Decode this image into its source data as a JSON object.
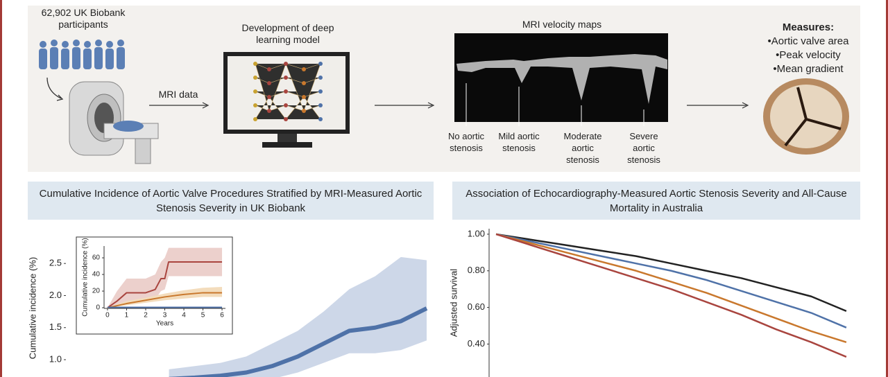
{
  "header": {
    "participants": "62,902 UK Biobank participants",
    "mri_data": "MRI data",
    "model": "Development of deep learning model",
    "maps_title": "MRI velocity maps",
    "maps_labels": [
      "No aortic stenosis",
      "Mild aortic stenosis",
      "Moderate aortic stenosis",
      "Severe aortic stenosis"
    ],
    "measures_title": "Measures:",
    "measures": [
      "•Aortic valve area",
      "•Peak velocity",
      "•Mean gradient"
    ]
  },
  "chart_data": [
    {
      "type": "line",
      "title": "Cumulative Incidence of Aortic Valve Procedures Stratified by MRI-Measured Aortic Stenosis Severity in UK Biobank",
      "y_label": "Cumulative incidence (%)",
      "xlim": [
        -4,
        10
      ],
      "ylim": [
        0.73,
        2.88
      ],
      "yticks": [
        {
          "value": 1,
          "label": "1.0"
        },
        1.5,
        {
          "value": 2,
          "label": "2.0"
        },
        2.5
      ],
      "series": [
        {
          "color": "#4f72a8",
          "band_color": "#cdd7e8",
          "x": [
            0,
            1,
            2,
            3,
            4,
            5,
            6,
            7,
            8,
            9,
            10
          ],
          "values": [
            0.7,
            0.72,
            0.75,
            0.8,
            0.9,
            1.05,
            1.25,
            1.45,
            1.5,
            1.6,
            1.8
          ],
          "upper": [
            0.85,
            0.9,
            0.95,
            1.05,
            1.25,
            1.45,
            1.75,
            2.1,
            2.3,
            2.6,
            2.55
          ],
          "lower": [
            0.6,
            0.6,
            0.62,
            0.65,
            0.7,
            0.8,
            0.95,
            1.1,
            1.1,
            1.15,
            1.3
          ]
        }
      ]
    },
    {
      "type": "line",
      "x_label": "Years",
      "y_label": "Cumulative incidence (%)",
      "xlim": [
        -0.18,
        6.18
      ],
      "ylim": [
        -0.8,
        74.2
      ],
      "xticks": [
        0,
        1,
        2,
        3,
        4,
        5,
        6
      ],
      "yticks": [
        0,
        20,
        40,
        60
      ],
      "series": [
        {
          "color": "#a9453f",
          "band_color": "#ecd0cc",
          "x": [
            0,
            0.5,
            1,
            2,
            2.5,
            2.8,
            3,
            3.2,
            4,
            5,
            6
          ],
          "values": [
            0,
            8,
            18,
            18,
            22,
            35,
            35,
            55,
            55,
            55,
            55
          ],
          "upper": [
            0,
            20,
            35,
            35,
            40,
            55,
            60,
            72,
            72,
            72,
            72
          ],
          "lower": [
            0,
            2,
            8,
            8,
            10,
            20,
            22,
            38,
            38,
            38,
            38
          ]
        },
        {
          "color": "#c9782d",
          "band_color": "#f3dcbc",
          "x": [
            0,
            1,
            2,
            3,
            4,
            5,
            6
          ],
          "values": [
            0,
            5,
            9,
            13,
            16,
            18,
            18
          ],
          "upper": [
            0,
            8,
            12,
            17,
            21,
            24,
            25
          ],
          "lower": [
            0,
            3,
            6,
            9,
            11,
            13,
            13
          ]
        },
        {
          "color": "#4f72a8",
          "x": [
            0,
            6
          ],
          "values": [
            0.5,
            0.5
          ]
        }
      ]
    },
    {
      "type": "line",
      "title": "Association of Echocardiography-Measured Aortic Stenosis Severity and All-Cause Mortality in Australia",
      "y_label": "Adjusted survival",
      "xlim": [
        -0.2,
        10.2
      ],
      "ylim": [
        0.22,
        1.03
      ],
      "yticks": [
        {
          "value": 0.4,
          "label": "0.40"
        },
        {
          "value": 0.6,
          "label": "0.60"
        },
        {
          "value": 0.8,
          "label": "0.80"
        },
        {
          "value": 1,
          "label": "1.00"
        }
      ],
      "series": [
        {
          "color": "#222222",
          "x": [
            0,
            1,
            2,
            3,
            4,
            5,
            6,
            7,
            8,
            9,
            10
          ],
          "values": [
            1.0,
            0.97,
            0.94,
            0.91,
            0.88,
            0.84,
            0.8,
            0.76,
            0.71,
            0.66,
            0.58
          ]
        },
        {
          "color": "#4f72a8",
          "x": [
            0,
            1,
            2,
            3,
            4,
            5,
            6,
            7,
            8,
            9,
            10
          ],
          "values": [
            1.0,
            0.96,
            0.92,
            0.88,
            0.84,
            0.8,
            0.75,
            0.69,
            0.63,
            0.57,
            0.49
          ]
        },
        {
          "color": "#c9782d",
          "x": [
            0,
            1,
            2,
            3,
            4,
            5,
            6,
            7,
            8,
            9,
            10
          ],
          "values": [
            1.0,
            0.95,
            0.9,
            0.85,
            0.8,
            0.74,
            0.68,
            0.61,
            0.54,
            0.47,
            0.41
          ]
        },
        {
          "color": "#a9453f",
          "x": [
            0,
            1,
            2,
            3,
            4,
            5,
            6,
            7,
            8,
            9,
            10
          ],
          "values": [
            1.0,
            0.94,
            0.88,
            0.82,
            0.76,
            0.7,
            0.63,
            0.56,
            0.48,
            0.41,
            0.33
          ]
        }
      ]
    }
  ]
}
